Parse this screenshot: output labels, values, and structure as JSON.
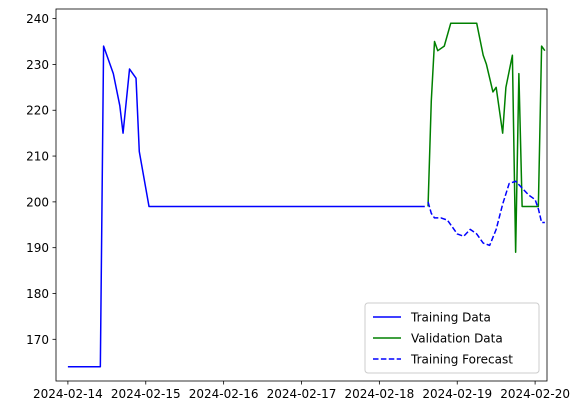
{
  "chart_data": {
    "type": "line",
    "title": "",
    "xlabel": "",
    "ylabel": "",
    "xlim": [
      "2024-02-13 20:20",
      "2024-02-20 03:40"
    ],
    "ylim": [
      160.9,
      242.1
    ],
    "grid": false,
    "legend_position": "lower-right",
    "x_ticks": [
      "2024-02-14",
      "2024-02-15",
      "2024-02-16",
      "2024-02-17",
      "2024-02-18",
      "2024-02-19",
      "2024-02-20"
    ],
    "y_ticks": [
      170,
      180,
      190,
      200,
      210,
      220,
      230,
      240
    ],
    "series": [
      {
        "name": "Training Data",
        "color": "#0000ff",
        "style": "solid",
        "points": [
          [
            "2024-02-14 00:00",
            164
          ],
          [
            "2024-02-14 10:00",
            164
          ],
          [
            "2024-02-14 11:00",
            234
          ],
          [
            "2024-02-14 14:00",
            228
          ],
          [
            "2024-02-14 16:00",
            221
          ],
          [
            "2024-02-14 17:00",
            215
          ],
          [
            "2024-02-14 19:00",
            229
          ],
          [
            "2024-02-14 21:00",
            227
          ],
          [
            "2024-02-14 22:00",
            211
          ],
          [
            "2024-02-15 00:00",
            203
          ],
          [
            "2024-02-15 01:00",
            199
          ],
          [
            "2024-02-18 14:00",
            199
          ]
        ]
      },
      {
        "name": "Validation Data",
        "color": "#008000",
        "style": "solid",
        "points": [
          [
            "2024-02-18 15:00",
            199
          ],
          [
            "2024-02-18 16:00",
            222
          ],
          [
            "2024-02-18 17:00",
            235
          ],
          [
            "2024-02-18 18:00",
            233
          ],
          [
            "2024-02-18 20:00",
            234
          ],
          [
            "2024-02-18 22:00",
            239
          ],
          [
            "2024-02-19 06:00",
            239
          ],
          [
            "2024-02-19 08:00",
            232
          ],
          [
            "2024-02-19 09:00",
            230
          ],
          [
            "2024-02-19 11:00",
            224
          ],
          [
            "2024-02-19 12:00",
            225
          ],
          [
            "2024-02-19 14:00",
            215
          ],
          [
            "2024-02-19 15:00",
            225
          ],
          [
            "2024-02-19 17:00",
            232
          ],
          [
            "2024-02-19 18:00",
            189
          ],
          [
            "2024-02-19 19:00",
            228
          ],
          [
            "2024-02-19 20:00",
            199
          ],
          [
            "2024-02-20 00:00",
            199
          ],
          [
            "2024-02-20 01:00",
            199
          ],
          [
            "2024-02-20 02:00",
            234
          ],
          [
            "2024-02-20 03:00",
            233
          ]
        ]
      },
      {
        "name": "Training Forecast",
        "color": "#0000ff",
        "style": "dashed",
        "points": [
          [
            "2024-02-18 15:00",
            200
          ],
          [
            "2024-02-18 16:00",
            197.5
          ],
          [
            "2024-02-18 17:00",
            196.5
          ],
          [
            "2024-02-18 19:00",
            196.5
          ],
          [
            "2024-02-18 21:00",
            196
          ],
          [
            "2024-02-19 00:00",
            193
          ],
          [
            "2024-02-19 02:00",
            192.5
          ],
          [
            "2024-02-19 04:00",
            194
          ],
          [
            "2024-02-19 06:00",
            193
          ],
          [
            "2024-02-19 08:00",
            191
          ],
          [
            "2024-02-19 10:00",
            190.5
          ],
          [
            "2024-02-19 12:00",
            194
          ],
          [
            "2024-02-19 14:00",
            199.5
          ],
          [
            "2024-02-19 16:00",
            204
          ],
          [
            "2024-02-19 18:00",
            204.5
          ],
          [
            "2024-02-19 20:00",
            203
          ],
          [
            "2024-02-19 22:00",
            201.5
          ],
          [
            "2024-02-20 00:00",
            200.5
          ],
          [
            "2024-02-20 01:00",
            198.5
          ],
          [
            "2024-02-20 02:00",
            195.5
          ],
          [
            "2024-02-20 03:00",
            195.5
          ]
        ]
      }
    ]
  }
}
